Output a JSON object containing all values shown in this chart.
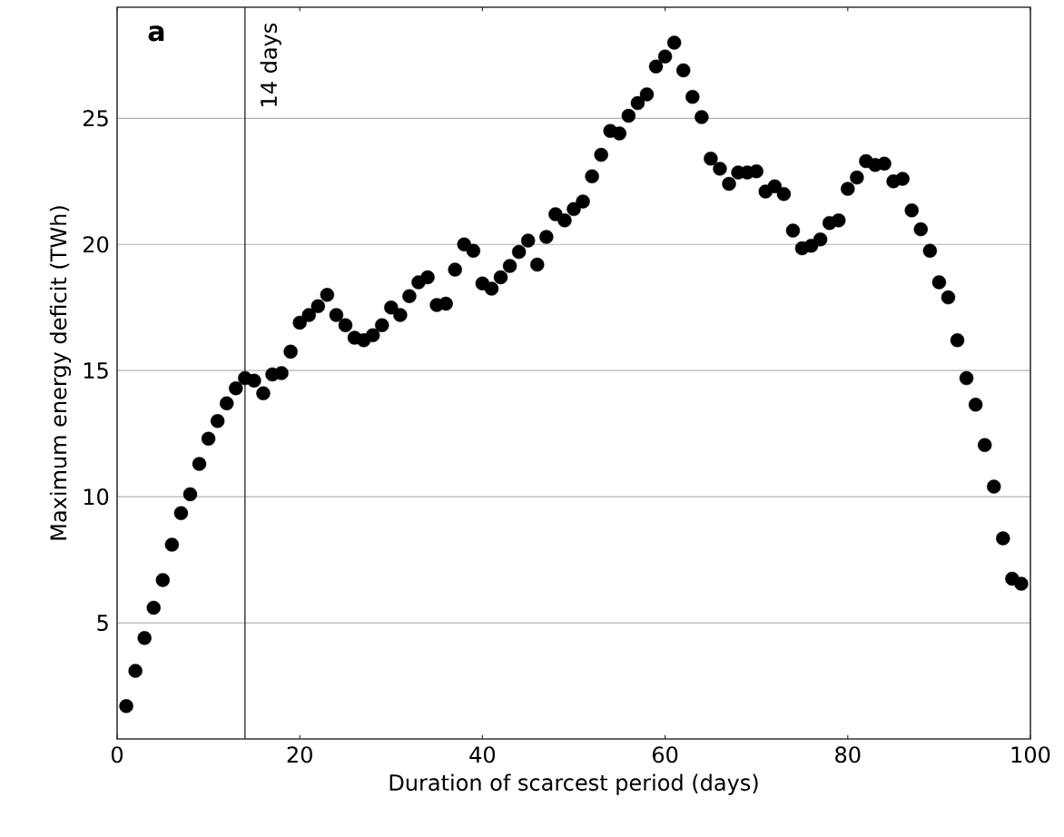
{
  "chart_data": {
    "type": "scatter",
    "xlabel": "Duration of scarcest period (days)",
    "ylabel": "Maximum energy deficit (TWh)",
    "annotations": [
      "a"
    ],
    "x": [
      1,
      2,
      3,
      4,
      5,
      6,
      7,
      8,
      9,
      10,
      11,
      12,
      13,
      14,
      15,
      16,
      17,
      18,
      19,
      20,
      21,
      22,
      23,
      24,
      25,
      26,
      27,
      28,
      29,
      30,
      31,
      32,
      33,
      34,
      35,
      36,
      37,
      38,
      39,
      40,
      41,
      42,
      43,
      44,
      45,
      46,
      47,
      48,
      49,
      50,
      51,
      52,
      53,
      54,
      55,
      56,
      57,
      58,
      59,
      60,
      61,
      62,
      63,
      64,
      65,
      66,
      67,
      68,
      69,
      70,
      71,
      72,
      73,
      74,
      75,
      76,
      77,
      78,
      79,
      80,
      81,
      82,
      83,
      84,
      85,
      86,
      87,
      88,
      89,
      90,
      91,
      92,
      93,
      94,
      95,
      96,
      97,
      98,
      99
    ],
    "values": [
      1.7,
      3.1,
      4.4,
      5.6,
      6.7,
      8.1,
      9.35,
      10.1,
      11.3,
      12.3,
      13.0,
      13.7,
      14.3,
      14.7,
      14.6,
      14.1,
      14.85,
      14.9,
      15.75,
      16.9,
      17.2,
      17.55,
      18.0,
      17.2,
      16.8,
      16.3,
      16.2,
      16.4,
      16.8,
      17.5,
      17.2,
      17.95,
      18.5,
      18.7,
      17.6,
      17.65,
      19.0,
      20.0,
      19.75,
      18.45,
      18.25,
      18.7,
      19.15,
      19.7,
      20.15,
      19.2,
      20.3,
      21.2,
      20.95,
      21.4,
      21.7,
      22.7,
      23.55,
      24.5,
      24.4,
      25.1,
      25.6,
      25.95,
      27.05,
      27.45,
      28.0,
      26.9,
      25.85,
      25.05,
      23.4,
      23.0,
      22.4,
      22.85,
      22.85,
      22.9,
      22.1,
      22.3,
      22.0,
      20.55,
      19.85,
      19.95,
      20.2,
      20.85,
      20.95,
      22.2,
      22.65,
      23.3,
      23.15,
      23.2,
      22.5,
      22.6,
      21.35,
      20.6,
      19.75,
      18.5,
      17.9,
      16.2,
      14.7,
      13.65,
      12.05,
      10.4,
      8.35,
      6.75,
      6.55
    ],
    "color": "#000000",
    "marker": "circle",
    "xlim": [
      0,
      100
    ],
    "ylim": [
      0.4,
      29.4
    ],
    "xticks": [
      0,
      20,
      40,
      60,
      80,
      100
    ],
    "yticks": [
      5,
      10,
      15,
      20,
      25
    ],
    "grid": "y",
    "ref_lines": [
      {
        "axis": "x",
        "value": 14,
        "label": "14 days",
        "color": "#333333"
      }
    ]
  }
}
